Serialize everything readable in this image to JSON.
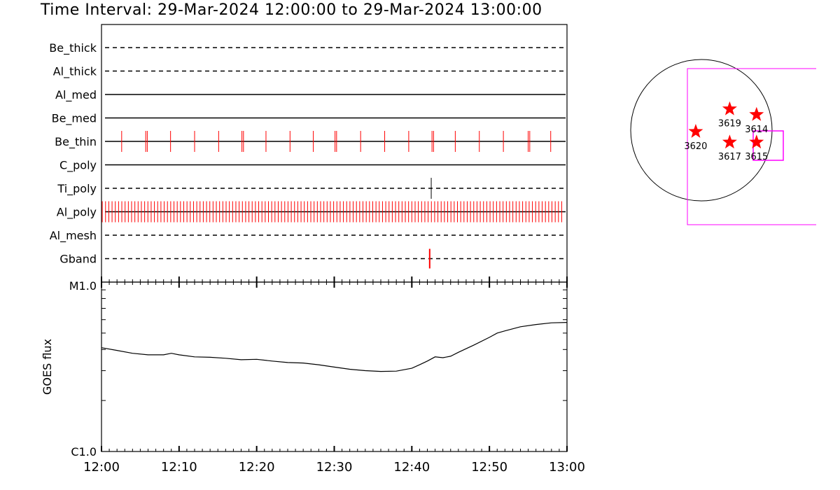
{
  "title": "Time Interval: 29-Mar-2024 12:00:00 to 29-Mar-2024 13:00:00",
  "colors": {
    "events": "#ff0000",
    "fov": "#ff00ff",
    "ink": "#000000",
    "background": "#ffffff"
  },
  "chart_data": [
    {
      "type": "timeline",
      "x_range": [
        "12:00",
        "13:00"
      ],
      "x_tick_labels": [
        "12:00",
        "12:10",
        "12:20",
        "12:30",
        "12:40",
        "12:50",
        "13:00"
      ],
      "rows": [
        {
          "label": "Be_thick",
          "style": "dashed",
          "events_min": []
        },
        {
          "label": "Al_thick",
          "style": "dashed",
          "events_min": []
        },
        {
          "label": "Al_med",
          "style": "solid",
          "events_min": []
        },
        {
          "label": "Be_med",
          "style": "solid",
          "events_min": []
        },
        {
          "label": "Be_thin",
          "style": "solid",
          "events_min": [
            2.6,
            5.7,
            5.9,
            8.9,
            12.0,
            15.1,
            18.1,
            18.3,
            21.2,
            24.3,
            27.3,
            30.1,
            30.3,
            33.4,
            36.5,
            39.6,
            42.6,
            42.8,
            45.6,
            48.7,
            51.8,
            55.0,
            55.2,
            57.9
          ],
          "color": "#ff0000"
        },
        {
          "label": "C_poly",
          "style": "solid",
          "events_min": []
        },
        {
          "label": "Ti_poly",
          "style": "dashed",
          "events_min": [
            42.5
          ],
          "color": "#000000"
        },
        {
          "label": "Al_poly",
          "style": "solid",
          "events_start_min": 0.1,
          "events_step_min": 0.42,
          "events_end_min": 59.7,
          "color": "#ff0000"
        },
        {
          "label": "Al_mesh",
          "style": "dashed",
          "events_min": []
        },
        {
          "label": "Gband",
          "style": "dashed",
          "events_min": [
            42.3
          ],
          "color": "#ff0000"
        }
      ]
    },
    {
      "type": "line",
      "ylabel": "GOES flux",
      "ylog": true,
      "y_tick_labels": [
        "C1.0",
        "M1.0"
      ],
      "ylim": [
        1e-06,
        1e-05
      ],
      "x_range": [
        "12:00",
        "13:00"
      ],
      "series": [
        {
          "x_min": [
            0,
            2,
            4,
            6,
            8,
            9,
            10,
            12,
            14,
            16,
            18,
            20,
            22,
            24,
            26,
            28,
            30,
            32,
            34,
            36,
            38,
            40,
            41,
            42,
            43,
            44,
            45,
            46,
            48,
            50,
            51,
            52,
            54,
            56,
            58,
            60
          ],
          "values": [
            4.1e-06,
            3.95e-06,
            3.8e-06,
            3.72e-06,
            3.72e-06,
            3.8e-06,
            3.72e-06,
            3.62e-06,
            3.6e-06,
            3.55e-06,
            3.48e-06,
            3.5e-06,
            3.42e-06,
            3.35e-06,
            3.33e-06,
            3.25e-06,
            3.15e-06,
            3.06e-06,
            3e-06,
            2.97e-06,
            2.98e-06,
            3.1e-06,
            3.25e-06,
            3.42e-06,
            3.62e-06,
            3.58e-06,
            3.65e-06,
            3.85e-06,
            4.25e-06,
            4.72e-06,
            5e-06,
            5.15e-06,
            5.45e-06,
            5.62e-06,
            5.75e-06,
            5.78e-06
          ]
        }
      ]
    },
    {
      "type": "map",
      "regions": [
        {
          "label": "3619",
          "x": 0.4,
          "y": -0.3
        },
        {
          "label": "3614",
          "x": 0.78,
          "y": -0.22
        },
        {
          "label": "3620",
          "x": -0.08,
          "y": 0.02
        },
        {
          "label": "3617",
          "x": 0.4,
          "y": 0.17
        },
        {
          "label": "3615",
          "x": 0.78,
          "y": 0.17
        }
      ]
    }
  ]
}
